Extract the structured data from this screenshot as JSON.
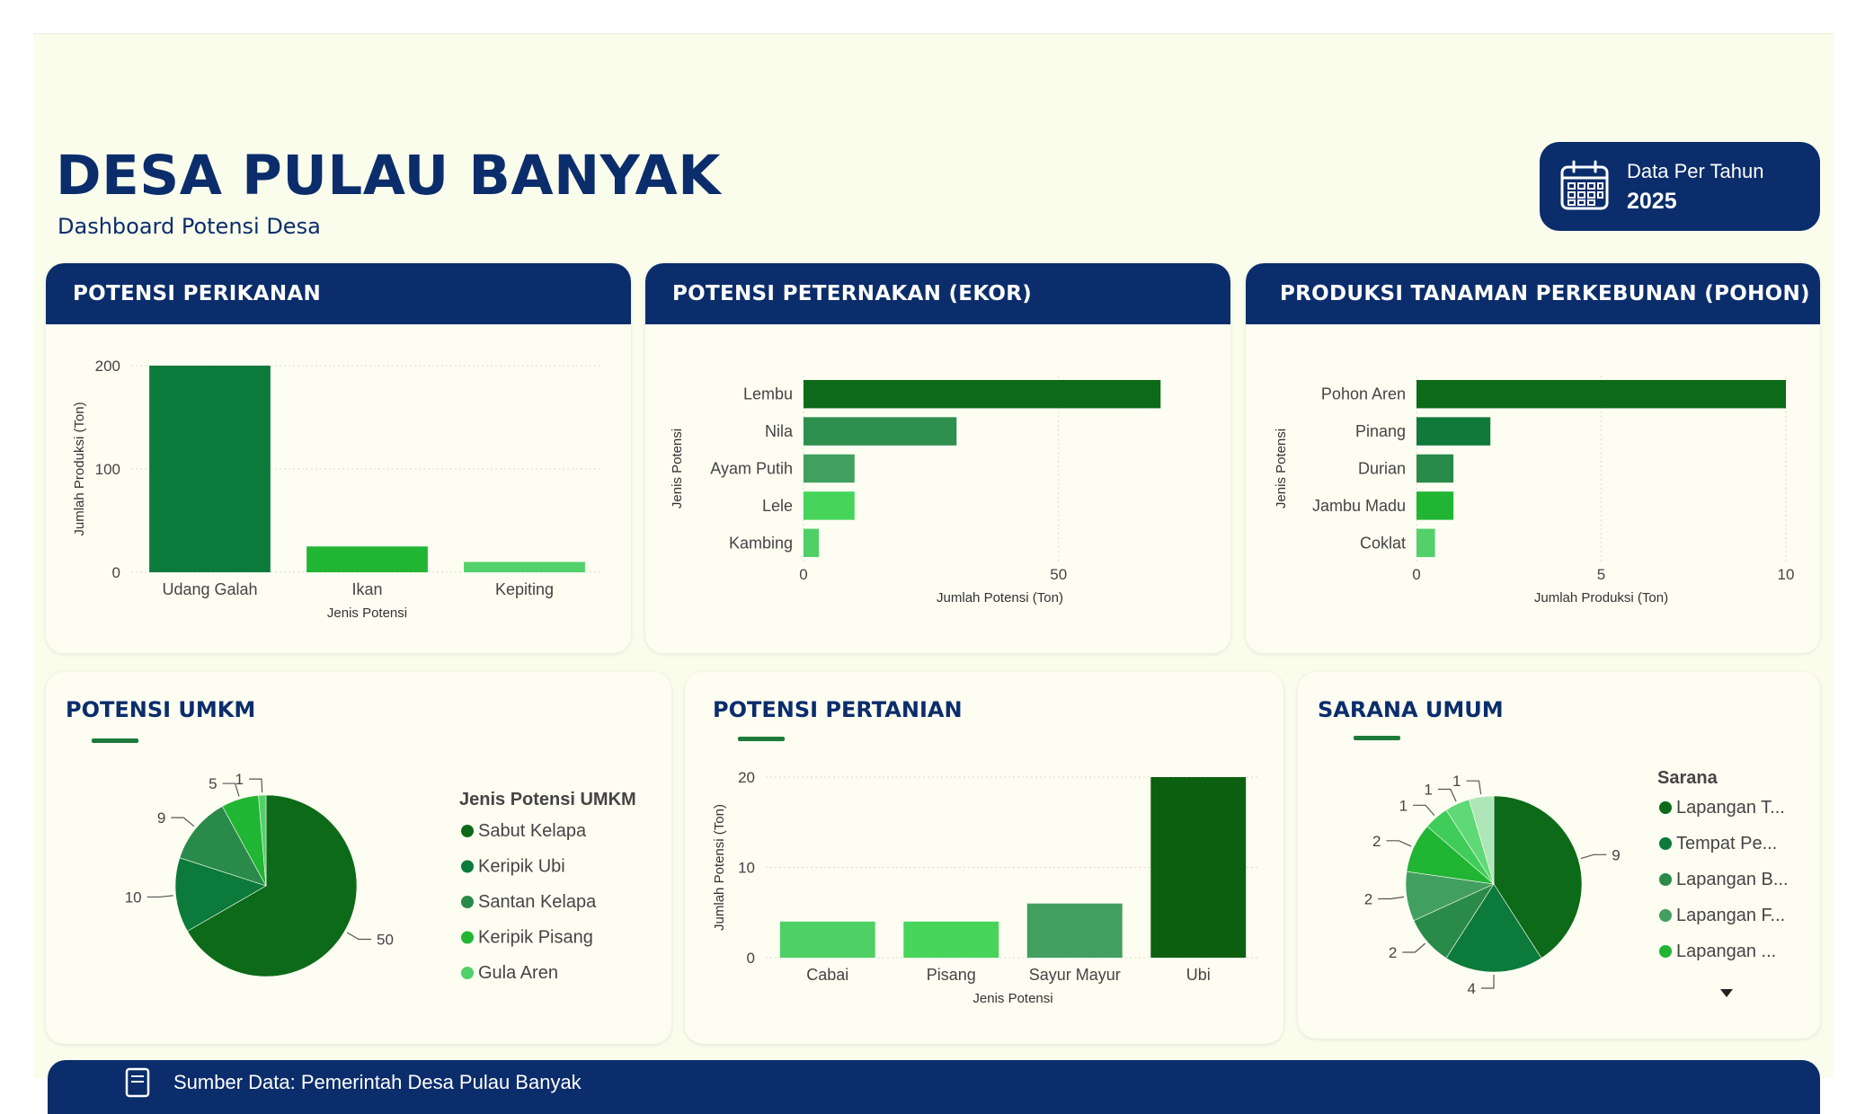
{
  "header": {
    "title": "DESA PULAU BANYAK",
    "subtitle": "Dashboard Potensi Desa",
    "date_label": "Data Per Tahun",
    "date_year": "2025"
  },
  "footer": {
    "text": "Sumber Data: Pemerintah Desa Pulau Banyak"
  },
  "icons": {
    "date": "calendar-icon",
    "footer": "document-icon"
  },
  "colors": {
    "navy": "#0b2d6b",
    "green_dark": "#0c5e12",
    "green": "#1e8b3a",
    "green_light": "#52d06a"
  },
  "chart_data": [
    {
      "id": "perikanan",
      "type": "bar",
      "title": "POTENSI PERIKANAN",
      "categories": [
        "Udang Galah",
        "Ikan",
        "Kepiting"
      ],
      "values": [
        200,
        25,
        10
      ],
      "colors": [
        "#0b7a3a",
        "#21b534",
        "#52d06a"
      ],
      "xlabel": "Jenis Potensi",
      "ylabel": "Jumlah Produksi (Ton)",
      "ylim": [
        0,
        200
      ],
      "yticks": [
        0,
        100,
        200
      ],
      "grid": true
    },
    {
      "id": "peternakan",
      "type": "bar",
      "orientation": "horizontal",
      "title": "POTENSI PETERNAKAN (EKOR)",
      "categories": [
        "Lembu",
        "Nila",
        "Ayam Putih",
        "Lele",
        "Kambing"
      ],
      "values": [
        70,
        30,
        10,
        10,
        3
      ],
      "colors": [
        "#0c6a18",
        "#2e8f4f",
        "#41a05f",
        "#46d55a",
        "#4fd065"
      ],
      "xlabel": "Jumlah Potensi (Ton)",
      "ylabel": "Jenis Potensi",
      "xlim": [
        0,
        77
      ],
      "xticks": [
        0,
        50
      ],
      "grid": true
    },
    {
      "id": "perkebunan",
      "type": "bar",
      "orientation": "horizontal",
      "title": "PRODUKSI TANAMAN PERKEBUNAN (POHON)",
      "categories": [
        "Pohon Aren",
        "Pinang",
        "Durian",
        "Jambu Madu",
        "Coklat"
      ],
      "values": [
        10,
        2,
        1,
        1,
        0.5
      ],
      "colors": [
        "#0c6a18",
        "#0f7a3a",
        "#2a8a4a",
        "#21b534",
        "#52d06a"
      ],
      "xlabel": "Jumlah Produksi (Ton)",
      "ylabel": "Jenis Potensi",
      "xlim": [
        0,
        10
      ],
      "xticks": [
        0,
        5,
        10
      ],
      "grid": true
    },
    {
      "id": "umkm",
      "type": "pie",
      "title": "POTENSI UMKM",
      "legend_title": "Jenis Potensi UMKM",
      "categories": [
        "Sabut Kelapa",
        "Keripik Ubi",
        "Santan Kelapa",
        "Keripik Pisang",
        "Gula Aren"
      ],
      "values": [
        50,
        10,
        9,
        5,
        1
      ],
      "colors": [
        "#0c6a18",
        "#0b7a3a",
        "#2a8a4a",
        "#21b534",
        "#52d06a"
      ],
      "legend_position": "right"
    },
    {
      "id": "pertanian",
      "type": "bar",
      "title": "POTENSI PERTANIAN",
      "categories": [
        "Cabai",
        "Pisang",
        "Sayur Mayur",
        "Ubi"
      ],
      "values": [
        4,
        4,
        6,
        20
      ],
      "colors": [
        "#4fd065",
        "#46d55a",
        "#41a05f",
        "#0c6010"
      ],
      "xlabel": "Jenis Potensi",
      "ylabel": "Jumlah Potensi (Ton)",
      "ylim": [
        0,
        20
      ],
      "yticks": [
        0,
        10,
        20
      ],
      "grid": true
    },
    {
      "id": "sarana",
      "type": "pie",
      "title": "SARANA UMUM",
      "legend_title": "Sarana",
      "legend_entries": [
        "Lapangan T...",
        "Tempat Pe...",
        "Lapangan B...",
        "Lapangan F...",
        "Lapangan ..."
      ],
      "values": [
        9,
        4,
        2,
        2,
        2,
        1,
        1,
        1
      ],
      "colors": [
        "#0c6a18",
        "#0b7a3a",
        "#2a8a4a",
        "#41a05f",
        "#21b534",
        "#3fcc59",
        "#5fd877",
        "#aee6b8"
      ],
      "legend_position": "right"
    }
  ]
}
